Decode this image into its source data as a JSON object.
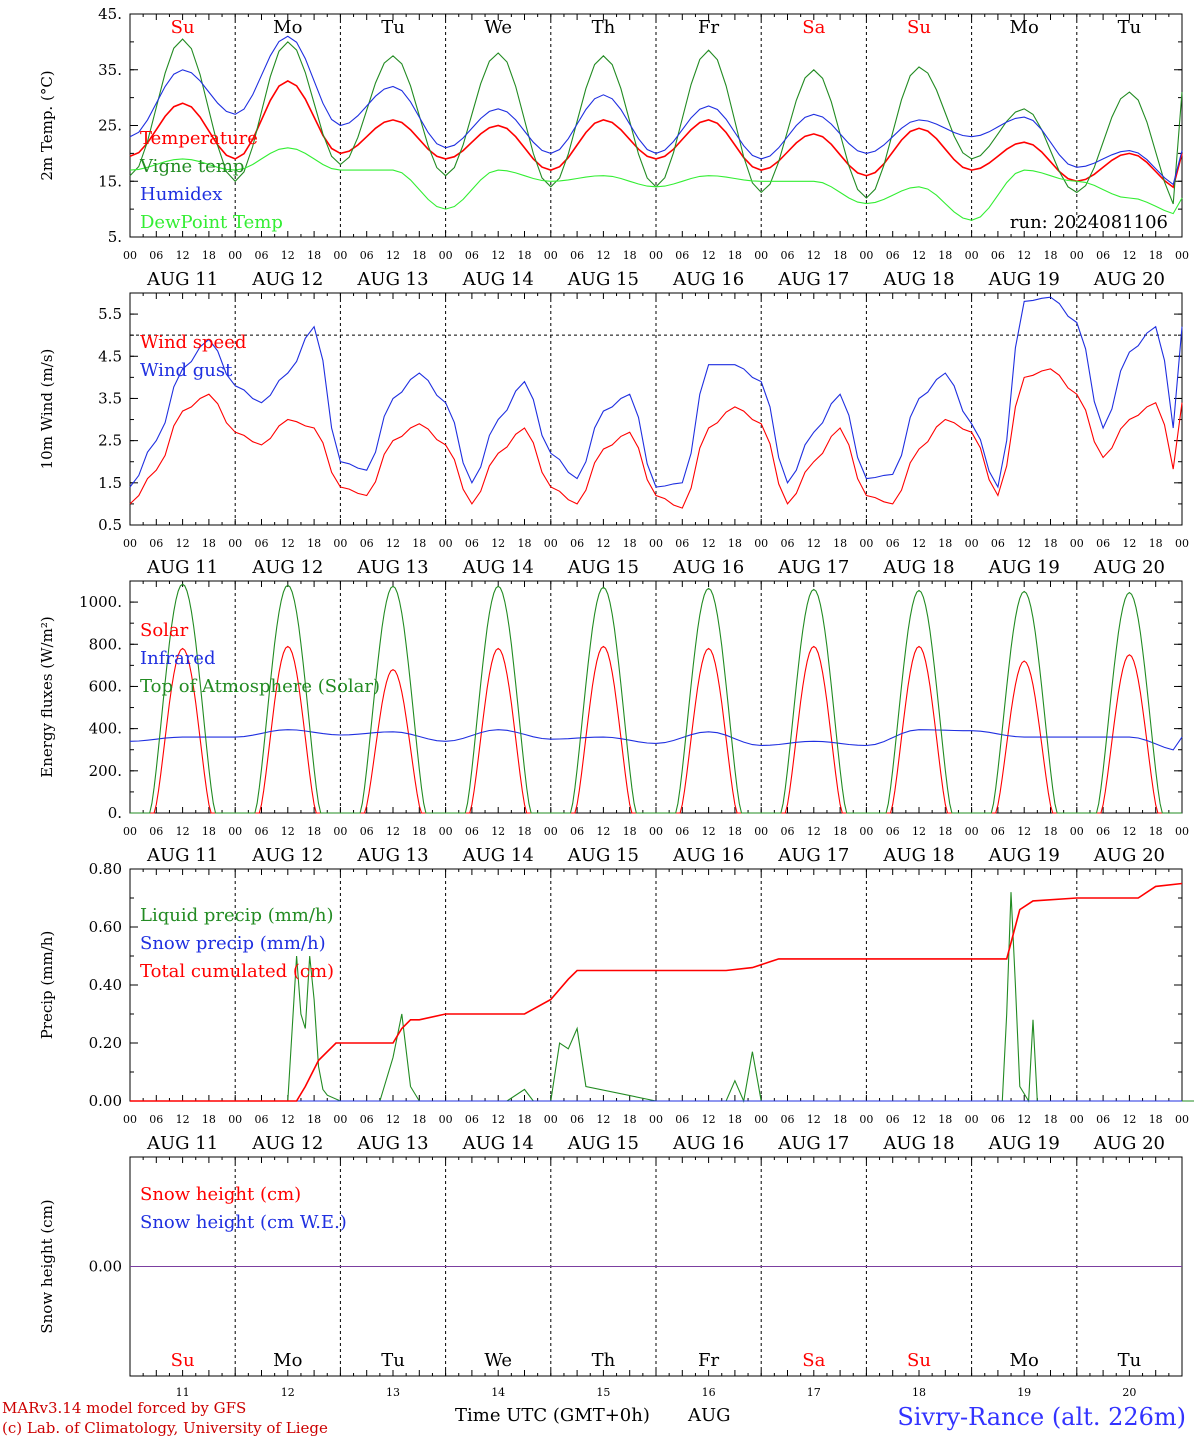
{
  "colors": {
    "red": "#ff0000",
    "green": "#228b22",
    "blue": "#1f2fe0",
    "lightgreen": "#33ee33",
    "purple": "#7b3fa0",
    "weekend": "#ff0000",
    "weekday": "#000000"
  },
  "days": [
    {
      "abbr": "Su",
      "date": "AUG 11",
      "num": "11",
      "weekend": true
    },
    {
      "abbr": "Mo",
      "date": "AUG 12",
      "num": "12",
      "weekend": false
    },
    {
      "abbr": "Tu",
      "date": "AUG 13",
      "num": "13",
      "weekend": false
    },
    {
      "abbr": "We",
      "date": "AUG 14",
      "num": "14",
      "weekend": false
    },
    {
      "abbr": "Th",
      "date": "AUG 15",
      "num": "15",
      "weekend": false
    },
    {
      "abbr": "Fr",
      "date": "AUG 16",
      "num": "16",
      "weekend": false
    },
    {
      "abbr": "Sa",
      "date": "AUG 17",
      "num": "17",
      "weekend": true
    },
    {
      "abbr": "Su",
      "date": "AUG 18",
      "num": "18",
      "weekend": true
    },
    {
      "abbr": "Mo",
      "date": "AUG 19",
      "num": "19",
      "weekend": false
    },
    {
      "abbr": "Tu",
      "date": "AUG 20",
      "num": "20",
      "weekend": false
    }
  ],
  "hour_ticks": [
    "00",
    "06",
    "12",
    "18"
  ],
  "run_label": "run: 2024081106",
  "footer": {
    "model_line": "MARv3.14 model forced by GFS",
    "copyright_line": "(c) Lab. of Climatology, University of Liege",
    "time_axis": "Time UTC (GMT+0h)",
    "month": "AUG",
    "station": "Sivry-Rance (alt. 226m)"
  },
  "chart_data": [
    {
      "type": "line",
      "ylabel": "2m Temp. (°C)",
      "ylim": [
        5,
        45
      ],
      "ticks": [
        5,
        15,
        25,
        35,
        45
      ],
      "tick_labels": [
        "5.",
        "15.",
        "25.",
        "35.",
        "45."
      ],
      "day_labels_top": true,
      "series": [
        {
          "name": "Temperature",
          "color": "red",
          "start": 0,
          "step": 12,
          "values": [
            19.5,
            29,
            19,
            33,
            20,
            26,
            19,
            25,
            17,
            26,
            19,
            26,
            17,
            23.5,
            16,
            24.5,
            17,
            22,
            15,
            20,
            13.5
          ]
        },
        {
          "name": "Vigne temp",
          "color": "green",
          "start": 0,
          "step": 12,
          "values": [
            16,
            40.5,
            15,
            40,
            18,
            37.5,
            16,
            38,
            14,
            37.5,
            14,
            38.5,
            13,
            35,
            12,
            35.5,
            19,
            28,
            13,
            31,
            9.5
          ]
        },
        {
          "name": "Humidex",
          "color": "blue",
          "start": 0,
          "step": 12,
          "values": [
            23,
            35,
            27,
            41,
            25,
            32,
            21,
            28,
            20,
            30.5,
            20,
            28.5,
            19,
            27,
            20,
            26,
            23,
            26.5,
            17.5,
            20.5,
            14
          ]
        },
        {
          "name": "DewPoint Temp",
          "color": "lightgreen",
          "start": 0,
          "step": 12,
          "values": [
            17,
            19,
            17,
            21,
            17,
            17,
            10,
            17,
            15,
            16,
            14,
            16,
            15,
            15,
            11,
            14,
            8,
            17,
            15,
            12,
            9
          ]
        }
      ]
    },
    {
      "type": "line",
      "ylabel": "10m Wind (m/s)",
      "ylim": [
        0.5,
        6.0
      ],
      "ticks": [
        0.5,
        1.5,
        2.5,
        3.5,
        4.5,
        5.5
      ],
      "tick_labels": [
        "0.5",
        "1.5",
        "2.5",
        "3.5",
        "4.5",
        "5.5"
      ],
      "ref_line": 5.0,
      "series": [
        {
          "name": "Wind speed",
          "color": "red",
          "start": 0,
          "step": 6,
          "values": [
            1.0,
            1.8,
            3.2,
            3.6,
            2.7,
            2.4,
            3.0,
            2.8,
            1.4,
            1.2,
            2.5,
            2.9,
            2.4,
            1.0,
            2.2,
            2.8,
            1.4,
            1.0,
            2.3,
            2.7,
            1.2,
            0.9,
            2.8,
            3.3,
            2.9,
            1.0,
            2.0,
            2.8,
            1.2,
            1.0,
            2.3,
            3.0,
            2.7,
            1.2,
            4.0,
            4.2,
            3.6,
            2.1,
            3.0,
            3.4,
            1.3
          ]
        },
        {
          "name": "Wind gust",
          "color": "blue",
          "start": 0,
          "step": 6,
          "values": [
            1.4,
            2.5,
            4.2,
            4.9,
            3.8,
            3.4,
            4.1,
            5.2,
            2.0,
            1.8,
            3.5,
            4.1,
            3.4,
            1.5,
            3.0,
            3.9,
            2.2,
            1.6,
            3.2,
            3.6,
            1.4,
            1.5,
            4.3,
            4.3,
            3.9,
            1.5,
            2.7,
            3.6,
            1.6,
            1.7,
            3.5,
            4.1,
            2.9,
            1.4,
            5.8,
            5.9,
            5.3,
            2.8,
            4.6,
            5.2,
            2.0
          ]
        }
      ]
    },
    {
      "type": "line",
      "ylabel": "Energy fluxes (W/m²)",
      "ylim": [
        0,
        1100
      ],
      "ticks": [
        0,
        200,
        400,
        600,
        800,
        1000
      ],
      "tick_labels": [
        "0.",
        "200.",
        "400.",
        "600.",
        "800.",
        "1000."
      ],
      "series": [
        {
          "name": "Solar",
          "color": "red",
          "peaks": [
            780,
            790,
            680,
            780,
            790,
            780,
            790,
            790,
            720,
            750
          ]
        },
        {
          "name": "Infrared",
          "color": "blue",
          "start": 0,
          "step": 12,
          "values": [
            340,
            360,
            360,
            395,
            370,
            385,
            340,
            395,
            350,
            360,
            330,
            385,
            320,
            340,
            320,
            395,
            390,
            360,
            360,
            360,
            295
          ]
        },
        {
          "name": "Top of Atmosphere (Solar)",
          "color": "green",
          "peaks": [
            1085,
            1080,
            1075,
            1075,
            1070,
            1065,
            1060,
            1055,
            1050,
            1045
          ]
        }
      ]
    },
    {
      "type": "line",
      "ylabel": "Precip (mm/h)",
      "ylim": [
        0,
        0.8
      ],
      "ticks": [
        0,
        0.2,
        0.4,
        0.6,
        0.8
      ],
      "tick_labels": [
        "0.00",
        "0.20",
        "0.40",
        "0.60",
        "0.80"
      ],
      "series": [
        {
          "name": "Liquid precip (mm/h)",
          "color": "green",
          "x": [
            0,
            36,
            37,
            38,
            39,
            40,
            41,
            42,
            43,
            44,
            45,
            48,
            57,
            60,
            62,
            64,
            66,
            68,
            72,
            86,
            90,
            92,
            94,
            96,
            98,
            100,
            102,
            104,
            120,
            136,
            138,
            140,
            142,
            144,
            148,
            199,
            200,
            201,
            202,
            203,
            205,
            206,
            207,
            208,
            210,
            240,
            244,
            246,
            248,
            252,
            254,
            258,
            262,
            266,
            264,
            270,
            280,
            286
          ],
          "y": [
            0,
            0,
            0.25,
            0.5,
            0.3,
            0.25,
            0.5,
            0.35,
            0.12,
            0.04,
            0.02,
            0,
            0,
            0.15,
            0.3,
            0.05,
            0,
            0,
            0,
            0,
            0.04,
            0,
            0,
            0,
            0.2,
            0.18,
            0.25,
            0.05,
            0,
            0,
            0.07,
            0,
            0.17,
            0,
            0,
            0,
            0.3,
            0.72,
            0.4,
            0.05,
            0,
            0.28,
            0,
            0,
            0,
            0,
            0,
            0.18,
            0,
            0,
            0,
            0.05,
            0.02,
            0,
            0,
            0,
            0,
            0
          ]
        },
        {
          "name": "Snow precip (mm/h)",
          "color": "blue",
          "x": [
            0,
            240
          ],
          "y": [
            0,
            0
          ]
        },
        {
          "name": "Total cumulated (cm)",
          "color": "red",
          "x": [
            0,
            38,
            40,
            43,
            47,
            60,
            62,
            64,
            66,
            72,
            90,
            96,
            100,
            102,
            112,
            136,
            142,
            146,
            148,
            200,
            203,
            206,
            216,
            230,
            234,
            240
          ],
          "y": [
            0,
            0,
            0.05,
            0.14,
            0.2,
            0.2,
            0.25,
            0.28,
            0.28,
            0.3,
            0.3,
            0.35,
            0.42,
            0.45,
            0.45,
            0.45,
            0.46,
            0.48,
            0.49,
            0.49,
            0.66,
            0.69,
            0.7,
            0.7,
            0.74,
            0.75
          ]
        }
      ]
    },
    {
      "type": "line",
      "ylabel": "Snow height (cm)",
      "ylim": [
        -0.6,
        0.6
      ],
      "ticks": [
        0
      ],
      "tick_labels": [
        "0.00"
      ],
      "day_labels_bottom": true,
      "series": [
        {
          "name": "Snow height (cm)",
          "color": "red",
          "x": [
            0,
            240
          ],
          "y": [
            0,
            0
          ]
        },
        {
          "name": "Snow height (cm W.E.)",
          "color": "blue",
          "x": [
            0,
            240
          ],
          "y": [
            0,
            0
          ]
        }
      ]
    }
  ]
}
